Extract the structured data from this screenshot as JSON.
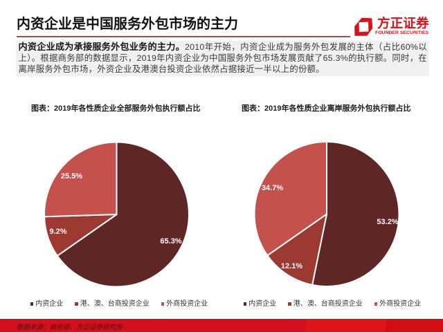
{
  "header": {
    "title": "内资企业是中国服务外包市场的主力",
    "underline_color": "#a34b48"
  },
  "logo": {
    "name_cn": "方正证券",
    "name_en": "FOUNDER SECURITIES",
    "brand_color": "#d8111a"
  },
  "intro": {
    "lead_bold": "内资企业成为承接服务外包业务的主力。",
    "body": "2010年开始，内资企业成为服务外包发展的主体（占比60%以上）。根据商务部的数据显示，2019年内资企业为中国服务外包市场发展贡献了65.3%的执行额。同时，在离岸服务外包市场，外资企业及港澳台投资企业依然占据接近一半以上的份额。"
  },
  "chart_data": [
    {
      "type": "pie",
      "title": "图表：2019年各性质企业全部服务外包执行额占比",
      "categories": [
        "内资企业",
        "港、澳、台商投资企业",
        "外商投资企业"
      ],
      "values": [
        65.3,
        9.2,
        25.5
      ],
      "labels": [
        "65.3%",
        "9.2%",
        "25.5%"
      ],
      "colors": [
        "#5e2726",
        "#9c3a32",
        "#c4514b"
      ],
      "start_angle_deg": 0,
      "direction": "clockwise",
      "legend_position": "bottom",
      "center": [
        168.5,
        310
      ],
      "radius": 103.5,
      "label_radius_ratio": 0.85,
      "label_positions": [
        [
          247,
          349
        ],
        [
          84,
          335
        ],
        [
          103.5,
          255
        ]
      ]
    },
    {
      "type": "pie",
      "title": "图表：2019年各性质企业离岸服务外包执行额占比",
      "categories": [
        "内资企业",
        "港、澳、台商投资企业",
        "外商投资企业"
      ],
      "values": [
        53.2,
        12.1,
        34.7
      ],
      "labels": [
        "53.2%",
        "12.1%",
        "34.7%"
      ],
      "colors": [
        "#5e2726",
        "#9c3a32",
        "#c4514b"
      ],
      "start_angle_deg": 0,
      "direction": "clockwise",
      "legend_position": "bottom",
      "center": [
        472,
        309.5
      ],
      "radius": 103.5,
      "label_radius_ratio": 0.85,
      "label_positions": [
        [
          560,
          321
        ],
        [
          421.5,
          384.5
        ],
        [
          393.5,
          271.5
        ]
      ]
    }
  ],
  "footer": {
    "source": "数据来源：商务部、方正证券研究所"
  }
}
